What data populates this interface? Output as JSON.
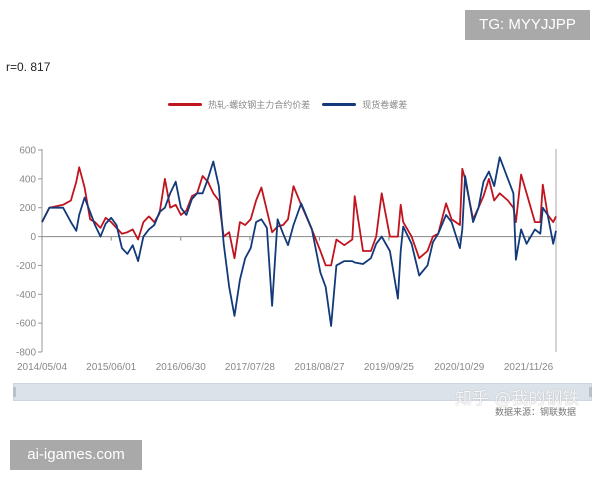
{
  "watermarks": {
    "top_right": "TG: MYYJJPP",
    "bottom_left": "ai-igames.com",
    "zhihu": "知乎 @我的钢铁"
  },
  "source": "数据来源：钢联数据",
  "correlation_label": "r=0. 817",
  "chart_data": {
    "type": "line",
    "title": "",
    "xlabel": "",
    "ylabel": "",
    "ylim": [
      -800,
      600
    ],
    "yticks": [
      600,
      400,
      200,
      0,
      -200,
      -400,
      -600,
      -800
    ],
    "xlim": [
      "2014-05-04",
      "2022-05-01"
    ],
    "xticks": [
      "2014/05/04",
      "2015/06/01",
      "2016/06/30",
      "2017/07/28",
      "2018/08/27",
      "2019/09/25",
      "2020/10/29",
      "2021/11/26"
    ],
    "legend_position": "top",
    "grid": false,
    "x": [
      "2014-05-04",
      "2014-06-15",
      "2014-09-01",
      "2014-10-15",
      "2014-11-15",
      "2014-12-01",
      "2015-01-01",
      "2015-02-01",
      "2015-03-01",
      "2015-04-01",
      "2015-05-01",
      "2015-06-01",
      "2015-07-01",
      "2015-08-01",
      "2015-09-01",
      "2015-10-01",
      "2015-11-01",
      "2015-12-01",
      "2016-01-01",
      "2016-02-01",
      "2016-03-01",
      "2016-04-01",
      "2016-05-01",
      "2016-06-01",
      "2016-07-01",
      "2016-08-01",
      "2016-09-01",
      "2016-10-01",
      "2016-11-01",
      "2016-12-01",
      "2017-01-01",
      "2017-02-01",
      "2017-03-01",
      "2017-04-01",
      "2017-05-01",
      "2017-06-01",
      "2017-07-01",
      "2017-08-01",
      "2017-09-01",
      "2017-10-01",
      "2017-11-01",
      "2017-12-01",
      "2018-01-01",
      "2018-02-01",
      "2018-03-01",
      "2018-04-01",
      "2018-05-15",
      "2018-07-15",
      "2018-09-01",
      "2018-10-01",
      "2018-11-01",
      "2018-12-01",
      "2019-01-15",
      "2019-03-01",
      "2019-03-15",
      "2019-05-01",
      "2019-06-15",
      "2019-07-15",
      "2019-08-15",
      "2019-10-01",
      "2019-11-15",
      "2019-12-01",
      "2019-12-15",
      "2020-02-01",
      "2020-03-15",
      "2020-05-01",
      "2020-06-01",
      "2020-07-01",
      "2020-08-15",
      "2020-09-15",
      "2020-11-01",
      "2020-11-15",
      "2020-12-01",
      "2021-01-15",
      "2021-02-15",
      "2021-03-15",
      "2021-04-15",
      "2021-05-15",
      "2021-06-15",
      "2021-08-01",
      "2021-09-01",
      "2021-09-15",
      "2021-10-15",
      "2021-11-15",
      "2022-01-01",
      "2022-02-01",
      "2022-02-15",
      "2022-03-15",
      "2022-04-15",
      "2022-05-01"
    ],
    "series": [
      {
        "name": "热轧-螺纹钢主力合约价差",
        "color": "#c0141e",
        "values": [
          100,
          200,
          220,
          250,
          380,
          480,
          340,
          120,
          100,
          60,
          130,
          100,
          60,
          20,
          30,
          50,
          -20,
          100,
          140,
          100,
          160,
          400,
          200,
          220,
          150,
          180,
          280,
          300,
          420,
          380,
          300,
          250,
          0,
          30,
          -150,
          100,
          80,
          120,
          250,
          340,
          180,
          30,
          70,
          80,
          120,
          350,
          220,
          50,
          -100,
          -200,
          -200,
          -20,
          -60,
          -20,
          280,
          -100,
          -100,
          0,
          300,
          0,
          0,
          220,
          100,
          0,
          -150,
          -100,
          0,
          20,
          230,
          120,
          80,
          470,
          400,
          120,
          200,
          280,
          400,
          250,
          300,
          250,
          200,
          100,
          430,
          300,
          100,
          100,
          360,
          150,
          100,
          140
        ]
      },
      {
        "name": "现货卷螺差",
        "color": "#123a7a",
        "values": [
          100,
          200,
          200,
          100,
          40,
          150,
          270,
          170,
          80,
          0,
          90,
          130,
          80,
          -80,
          -120,
          -60,
          -170,
          0,
          50,
          80,
          170,
          200,
          300,
          380,
          200,
          150,
          260,
          300,
          300,
          400,
          520,
          350,
          -50,
          -350,
          -550,
          -300,
          -150,
          -80,
          100,
          120,
          60,
          -480,
          120,
          20,
          -60,
          80,
          230,
          50,
          -250,
          -350,
          -620,
          -200,
          -170,
          -170,
          -180,
          -190,
          -150,
          -50,
          0,
          -100,
          -430,
          -100,
          70,
          -50,
          -270,
          -200,
          -40,
          20,
          150,
          100,
          -80,
          50,
          420,
          100,
          200,
          380,
          450,
          350,
          550,
          400,
          300,
          -160,
          50,
          -50,
          50,
          20,
          200,
          150,
          -50,
          40
        ]
      }
    ]
  }
}
